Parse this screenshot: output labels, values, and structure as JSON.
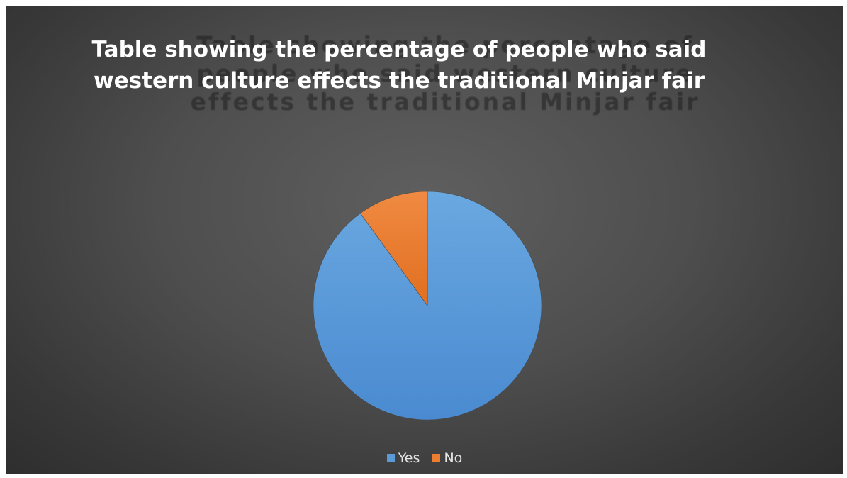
{
  "chart_data": {
    "type": "pie",
    "title": "Table showing the percentage of people who said western culture effects the traditional Minjar fair",
    "categories": [
      "Yes",
      "No"
    ],
    "values": [
      90,
      10
    ],
    "colors": [
      "#5b9bd5",
      "#ed7d31"
    ],
    "legend_position": "bottom",
    "start_angle_deg": 0
  }
}
